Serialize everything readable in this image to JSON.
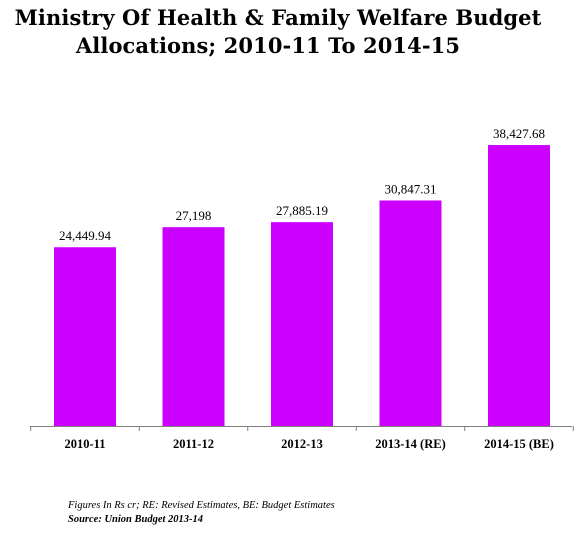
{
  "chart_data": {
    "type": "bar",
    "title_lines": [
      "Ministry Of Health & Family Welfare Budget",
      "Allocations; 2010-11 To 2014-15"
    ],
    "categories": [
      "2010-11",
      "2011-12",
      "2012-13",
      "2013-14 (RE)",
      "2014-15 (BE)"
    ],
    "values": [
      24449.94,
      27198,
      27885.19,
      30847.31,
      38427.68
    ],
    "data_labels": [
      "24,449.94",
      "27,198",
      "27,885.19",
      "30,847.31",
      "38,427.68"
    ],
    "ylim": [
      0,
      45000
    ],
    "bar_color": "#cc00ff",
    "grid": false,
    "legend": "none"
  },
  "notes": "Figures In Rs cr; RE: Revised Estimates, BE: Budget Estimates",
  "source": "Source: Union Budget 2013-14"
}
